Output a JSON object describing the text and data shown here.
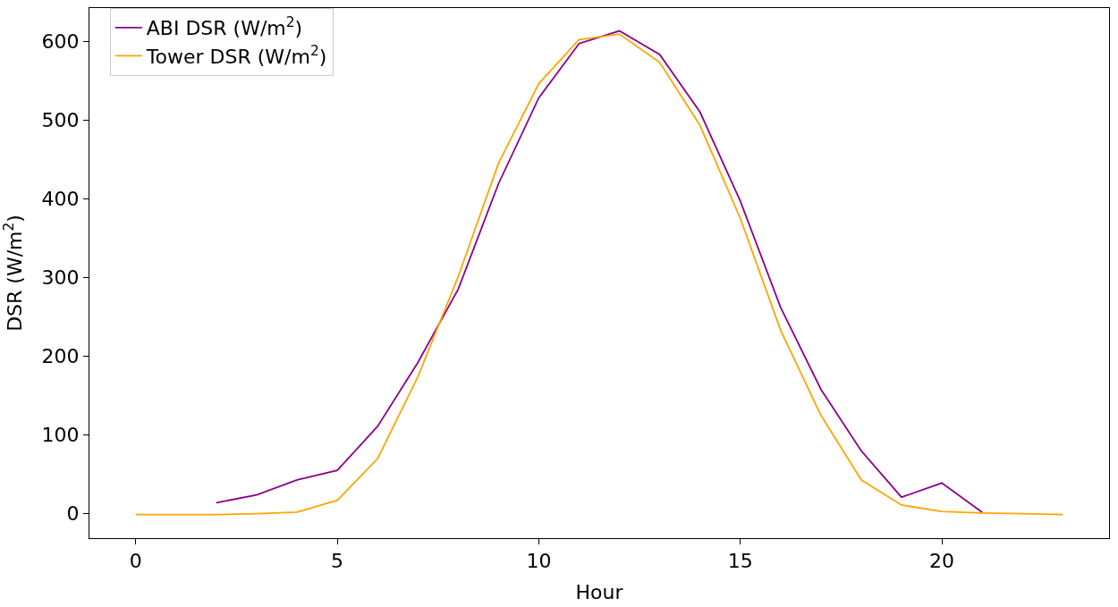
{
  "chart_data": {
    "type": "line",
    "xlabel": "Hour",
    "ylabel": "DSR (W/m$^{2}$)",
    "xlim": [
      -1.15,
      24.15
    ],
    "xticks": [
      0,
      5,
      10,
      15,
      20
    ],
    "ylim": [
      -31,
      642
    ],
    "yticks": [
      0,
      100,
      200,
      300,
      400,
      500,
      600
    ],
    "legend": "top left",
    "marker": "none",
    "line_style": "solid",
    "series": [
      {
        "name": "ABI DSR (W/m$^{2}$)",
        "color": "#8b008b",
        "x": [
          2,
          3,
          4,
          5,
          6,
          7,
          8,
          9,
          10,
          11,
          12,
          13,
          14,
          15,
          16,
          17,
          18,
          19,
          20,
          21
        ],
        "values": [
          14,
          24,
          43,
          55,
          111,
          192,
          285,
          419,
          528,
          597,
          613,
          583,
          510,
          397,
          262,
          158,
          80,
          21,
          39,
          2
        ]
      },
      {
        "name": "Tower DSR (W/m$^{2}$)",
        "color": "#ffa500",
        "x": [
          0,
          1,
          2,
          3,
          4,
          5,
          6,
          7,
          8,
          9,
          10,
          11,
          12,
          13,
          14,
          15,
          16,
          17,
          18,
          19,
          20,
          21,
          22,
          23
        ],
        "values": [
          -1,
          -1,
          -1,
          0,
          2,
          17,
          70,
          174,
          301,
          445,
          546,
          602,
          609,
          573,
          493,
          375,
          233,
          125,
          43,
          11,
          3,
          1,
          0,
          -1
        ]
      }
    ]
  }
}
